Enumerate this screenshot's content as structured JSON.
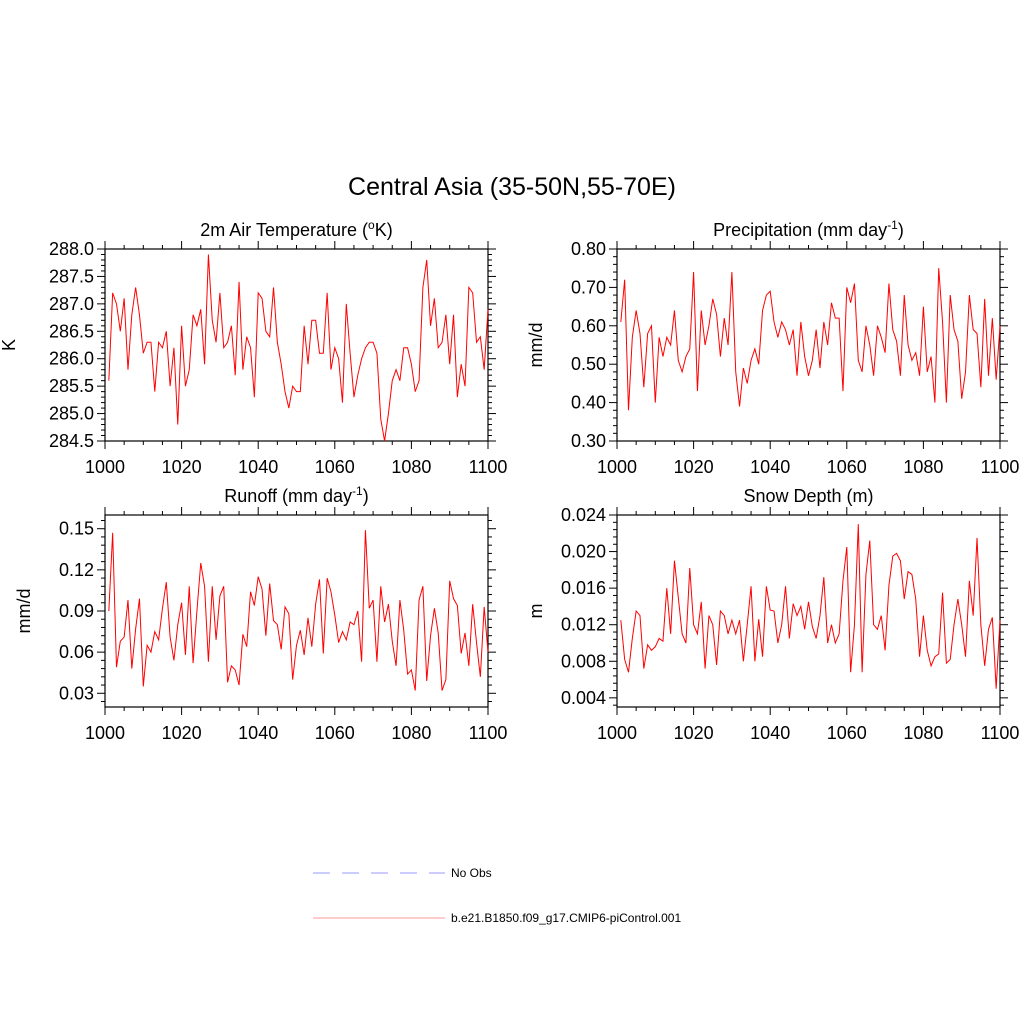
{
  "figure": {
    "title": "Central Asia (35-50N,55-70E)"
  },
  "legend": {
    "items": [
      {
        "label": "No Obs",
        "color": "#9999ff",
        "style": "dashed"
      },
      {
        "label": "b.e21.B1850.f09_g17.CMIP6-piControl.001",
        "color": "#ff9999",
        "style": "solid"
      }
    ]
  },
  "chart_data": [
    {
      "type": "line",
      "title": "2m Air Temperature (°K)",
      "title_main": "2m Air Temperature (",
      "title_sup": "o",
      "title_end": "K)",
      "xlabel": "",
      "ylabel": "K",
      "xlim": [
        1000,
        1100
      ],
      "ylim": [
        284.5,
        288.0
      ],
      "xticks": [
        1000,
        1020,
        1040,
        1060,
        1080,
        1100
      ],
      "yticks": [
        284.5,
        285.0,
        285.5,
        286.0,
        286.5,
        287.0,
        287.5,
        288.0
      ],
      "ytick_labels": [
        "284.5",
        "285.0",
        "285.5",
        "286.0",
        "286.5",
        "287.0",
        "287.5",
        "288.0"
      ],
      "x_start": 1001,
      "series": [
        {
          "name": "b.e21.B1850.f09_g17.CMIP6-piControl.001",
          "color": "#ff0000",
          "values": [
            285.6,
            287.2,
            287.0,
            286.5,
            287.1,
            285.8,
            286.8,
            287.3,
            286.8,
            286.1,
            286.3,
            286.3,
            285.4,
            286.3,
            286.2,
            286.5,
            285.5,
            286.2,
            284.8,
            286.6,
            285.5,
            285.8,
            286.8,
            286.6,
            286.9,
            285.9,
            287.9,
            286.7,
            286.3,
            287.2,
            286.2,
            286.3,
            286.6,
            285.7,
            287.4,
            285.8,
            286.4,
            286.2,
            285.3,
            287.2,
            287.1,
            286.5,
            286.4,
            287.3,
            286.3,
            285.9,
            285.4,
            285.1,
            285.5,
            285.4,
            285.4,
            286.6,
            285.9,
            286.7,
            286.7,
            286.1,
            286.1,
            287.2,
            285.8,
            286.2,
            286.0,
            285.2,
            287.0,
            286.1,
            285.3,
            285.7,
            286.0,
            286.2,
            286.3,
            286.3,
            286.1,
            284.9,
            284.5,
            285.0,
            285.6,
            285.8,
            285.6,
            286.2,
            286.2,
            285.9,
            285.4,
            285.6,
            287.3,
            287.8,
            286.6,
            287.1,
            286.2,
            286.3,
            286.8,
            285.9,
            286.8,
            285.3,
            285.9,
            285.5,
            287.3,
            287.2,
            286.3,
            286.4,
            285.8,
            286.9
          ]
        }
      ]
    },
    {
      "type": "line",
      "title": "Precipitation (mm day-1)",
      "title_main": "Precipitation (mm day",
      "title_sup": "-1",
      "title_end": ")",
      "xlabel": "",
      "ylabel": "mm/d",
      "xlim": [
        1000,
        1100
      ],
      "ylim": [
        0.3,
        0.8
      ],
      "xticks": [
        1000,
        1020,
        1040,
        1060,
        1080,
        1100
      ],
      "yticks": [
        0.3,
        0.4,
        0.5,
        0.6,
        0.7,
        0.8
      ],
      "ytick_labels": [
        "0.30",
        "0.40",
        "0.50",
        "0.60",
        "0.70",
        "0.80"
      ],
      "x_start": 1001,
      "series": [
        {
          "name": "b.e21.B1850.f09_g17.CMIP6-piControl.001",
          "color": "#ff0000",
          "values": [
            0.61,
            0.72,
            0.38,
            0.57,
            0.64,
            0.58,
            0.44,
            0.58,
            0.6,
            0.4,
            0.57,
            0.52,
            0.57,
            0.55,
            0.64,
            0.51,
            0.48,
            0.52,
            0.54,
            0.74,
            0.43,
            0.64,
            0.55,
            0.6,
            0.67,
            0.63,
            0.52,
            0.62,
            0.55,
            0.74,
            0.48,
            0.39,
            0.49,
            0.45,
            0.51,
            0.54,
            0.5,
            0.64,
            0.68,
            0.69,
            0.61,
            0.57,
            0.61,
            0.59,
            0.55,
            0.59,
            0.47,
            0.61,
            0.52,
            0.47,
            0.51,
            0.59,
            0.49,
            0.61,
            0.55,
            0.66,
            0.62,
            0.62,
            0.43,
            0.7,
            0.66,
            0.71,
            0.51,
            0.48,
            0.6,
            0.55,
            0.47,
            0.6,
            0.57,
            0.53,
            0.71,
            0.59,
            0.56,
            0.47,
            0.68,
            0.55,
            0.51,
            0.53,
            0.47,
            0.65,
            0.48,
            0.52,
            0.4,
            0.75,
            0.61,
            0.4,
            0.68,
            0.59,
            0.56,
            0.41,
            0.48,
            0.68,
            0.59,
            0.58,
            0.44,
            0.67,
            0.47,
            0.62,
            0.46,
            0.6
          ]
        }
      ]
    },
    {
      "type": "line",
      "title": "Runoff (mm day-1)",
      "title_main": "Runoff (mm day",
      "title_sup": "-1",
      "title_end": ")",
      "xlabel": "",
      "ylabel": "mm/d",
      "xlim": [
        1000,
        1100
      ],
      "ylim": [
        0.02,
        0.16
      ],
      "xticks": [
        1000,
        1020,
        1040,
        1060,
        1080,
        1100
      ],
      "yticks": [
        0.03,
        0.06,
        0.09,
        0.12,
        0.15
      ],
      "ytick_labels": [
        "0.03",
        "0.06",
        "0.09",
        "0.12",
        "0.15"
      ],
      "x_start": 1001,
      "series": [
        {
          "name": "b.e21.B1850.f09_g17.CMIP6-piControl.001",
          "color": "#ff0000",
          "values": [
            0.09,
            0.147,
            0.049,
            0.068,
            0.071,
            0.098,
            0.048,
            0.077,
            0.099,
            0.035,
            0.065,
            0.06,
            0.075,
            0.069,
            0.092,
            0.111,
            0.071,
            0.054,
            0.08,
            0.096,
            0.058,
            0.108,
            0.052,
            0.09,
            0.125,
            0.108,
            0.053,
            0.108,
            0.069,
            0.101,
            0.108,
            0.038,
            0.05,
            0.047,
            0.036,
            0.073,
            0.064,
            0.104,
            0.094,
            0.115,
            0.106,
            0.072,
            0.11,
            0.083,
            0.08,
            0.062,
            0.093,
            0.088,
            0.04,
            0.065,
            0.076,
            0.058,
            0.085,
            0.064,
            0.095,
            0.113,
            0.059,
            0.114,
            0.104,
            0.087,
            0.067,
            0.075,
            0.069,
            0.082,
            0.08,
            0.09,
            0.053,
            0.149,
            0.092,
            0.098,
            0.053,
            0.108,
            0.082,
            0.095,
            0.068,
            0.05,
            0.098,
            0.076,
            0.044,
            0.047,
            0.032,
            0.098,
            0.108,
            0.039,
            0.072,
            0.092,
            0.074,
            0.032,
            0.04,
            0.112,
            0.099,
            0.094,
            0.059,
            0.074,
            0.05,
            0.095,
            0.067,
            0.042,
            0.093,
            0.06
          ]
        }
      ]
    },
    {
      "type": "line",
      "title": "Snow Depth (m)",
      "title_main": "Snow Depth (m)",
      "title_sup": "",
      "title_end": "",
      "xlabel": "",
      "ylabel": "m",
      "xlim": [
        1000,
        1100
      ],
      "ylim": [
        0.003,
        0.024
      ],
      "xticks": [
        1000,
        1020,
        1040,
        1060,
        1080,
        1100
      ],
      "yticks": [
        0.004,
        0.008,
        0.012,
        0.016,
        0.02,
        0.024
      ],
      "ytick_labels": [
        "0.004",
        "0.008",
        "0.012",
        "0.016",
        "0.020",
        "0.024"
      ],
      "x_start": 1001,
      "series": [
        {
          "name": "b.e21.B1850.f09_g17.CMIP6-piControl.001",
          "color": "#ff0000",
          "values": [
            0.0125,
            0.0082,
            0.0068,
            0.0105,
            0.0135,
            0.013,
            0.0072,
            0.0098,
            0.0092,
            0.0096,
            0.0105,
            0.0102,
            0.016,
            0.011,
            0.019,
            0.015,
            0.011,
            0.01,
            0.0182,
            0.012,
            0.011,
            0.0145,
            0.0072,
            0.013,
            0.012,
            0.0076,
            0.0135,
            0.013,
            0.011,
            0.0125,
            0.011,
            0.0125,
            0.008,
            0.012,
            0.0162,
            0.008,
            0.0126,
            0.0085,
            0.0162,
            0.0136,
            0.0135,
            0.01,
            0.012,
            0.0162,
            0.0105,
            0.0143,
            0.013,
            0.014,
            0.0115,
            0.0145,
            0.0118,
            0.0105,
            0.013,
            0.0172,
            0.01,
            0.012,
            0.01,
            0.011,
            0.0168,
            0.0205,
            0.0068,
            0.012,
            0.023,
            0.0068,
            0.0175,
            0.0212,
            0.012,
            0.0115,
            0.013,
            0.0092,
            0.0163,
            0.0195,
            0.0198,
            0.019,
            0.0148,
            0.0178,
            0.0175,
            0.0148,
            0.0085,
            0.013,
            0.0092,
            0.0075,
            0.0085,
            0.0088,
            0.0155,
            0.0078,
            0.0082,
            0.012,
            0.0148,
            0.012,
            0.0085,
            0.0168,
            0.013,
            0.0215,
            0.012,
            0.0075,
            0.0115,
            0.0128,
            0.005,
            0.0125
          ]
        }
      ]
    }
  ]
}
